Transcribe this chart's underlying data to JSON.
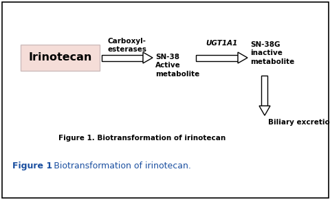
{
  "title_inner": "Figure 1. Biotransformation of irinotecan",
  "title_caption_bold": "Figure 1",
  "title_caption_rest": ": Biotransformation of irinotecan.",
  "irinotecan_label": "Irinotecan",
  "irinotecan_box_facecolor": "#f5ddd8",
  "irinotecan_box_edgecolor": "#ccbbbb",
  "carboxyl_label": "Carboxyl-\nesterases",
  "sn38_label": "SN-38\nActive\nmetabolite",
  "ugt_label": "UGT1A1",
  "sn38g_label": "SN-38G\ninactive\nmetabolite",
  "biliary_label": "Biliary excretion",
  "arrow_color": "#000000",
  "text_color": "#000000",
  "dark_color": "#1a1a1a",
  "caption_color": "#1a4fa0",
  "background": "#ffffff",
  "border_color": "#000000"
}
